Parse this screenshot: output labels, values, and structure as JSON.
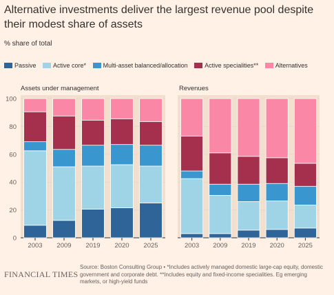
{
  "title": "Alternative investments deliver the largest revenue pool despite their modest share of assets",
  "subtitle": "% share of total",
  "legend": [
    {
      "label": "Passive",
      "color": "#2e6497"
    },
    {
      "label": "Active core*",
      "color": "#9fd3e6"
    },
    {
      "label": "Multi-asset balanced/allocation",
      "color": "#3a96cf"
    },
    {
      "label": "Active specialities**",
      "color": "#a4304d"
    },
    {
      "label": "Alternatives",
      "color": "#fa87a6"
    }
  ],
  "colors": {
    "background": "#fff1e5",
    "grid": "#e3d8cf",
    "panel_bg": "#f2dfce",
    "text": "#33302e",
    "muted": "#66605c"
  },
  "chart_data": [
    {
      "type": "bar",
      "stacked": true,
      "title": "Assets under management",
      "categories": [
        "2003",
        "2009",
        "2019",
        "2020",
        "2025"
      ],
      "yticks": [
        0,
        20,
        40,
        60,
        80,
        100
      ],
      "ylim": [
        0,
        100
      ],
      "grid": true,
      "series": [
        {
          "name": "Passive",
          "values": [
            9,
            12.5,
            20.5,
            21.5,
            25
          ]
        },
        {
          "name": "Active core*",
          "values": [
            53.5,
            38.5,
            31,
            31,
            26.5
          ]
        },
        {
          "name": "Multi-asset balanced/allocation",
          "values": [
            6.5,
            12.5,
            15,
            14.5,
            15
          ]
        },
        {
          "name": "Active specialities**",
          "values": [
            21.5,
            24,
            18,
            18.5,
            17
          ]
        },
        {
          "name": "Alternatives",
          "values": [
            9.5,
            12.5,
            15.5,
            14.5,
            16.5
          ]
        }
      ]
    },
    {
      "type": "bar",
      "stacked": true,
      "title": "Revenues",
      "categories": [
        "2003",
        "2009",
        "2019",
        "2020",
        "2025"
      ],
      "yticks": [
        0,
        20,
        40,
        60,
        80,
        100
      ],
      "ylim": [
        0,
        100
      ],
      "grid": true,
      "series": [
        {
          "name": "Passive",
          "values": [
            3,
            3,
            5.5,
            6,
            7
          ]
        },
        {
          "name": "Active core*",
          "values": [
            39.5,
            27.5,
            20.5,
            20.5,
            16.5
          ]
        },
        {
          "name": "Multi-asset balanced/allocation",
          "values": [
            5.5,
            8,
            12.5,
            12.5,
            13.5
          ]
        },
        {
          "name": "Active specialities**",
          "values": [
            25,
            22.5,
            20,
            18.5,
            16.5
          ]
        },
        {
          "name": "Alternatives",
          "values": [
            27,
            39,
            41.5,
            42.5,
            46.5
          ]
        }
      ]
    }
  ],
  "footer": {
    "brand": "FINANCIAL TIMES",
    "source": "Source: Boston Consulting Group • *Includes actively managed domestic large-cap equity, domestic government and corporate debt. **Includes equity and fixed-income specialities. Eg emerging markets, or high-yield funds"
  }
}
